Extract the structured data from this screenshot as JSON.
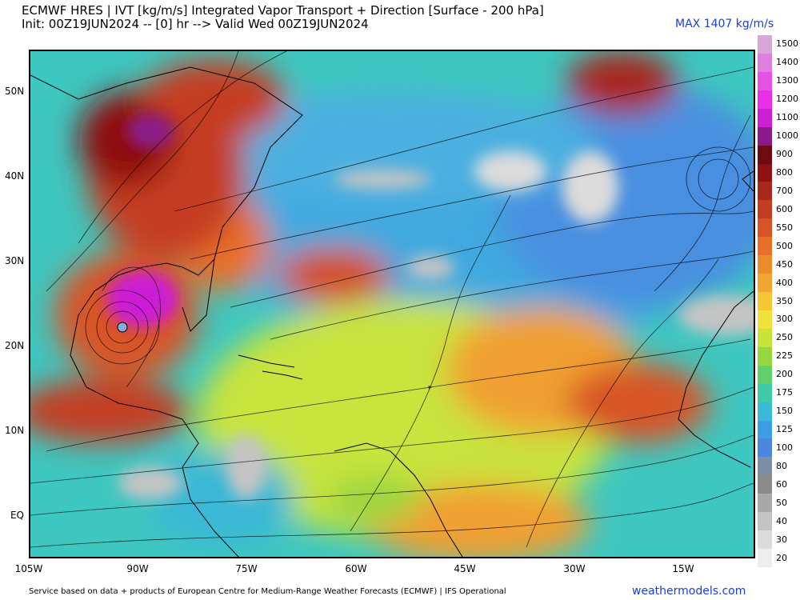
{
  "header": {
    "line1": "ECMWF HRES | IVT [kg/m/s] Integrated Vapor Transport + Direction [Surface - 200 hPa]",
    "line2": "Init: 00Z19JUN2024 -- [0] hr --> Valid Wed 00Z19JUN2024",
    "max_label": "MAX 1407 kg/m/s"
  },
  "axes": {
    "lat_labels": [
      "50N",
      "40N",
      "30N",
      "20N",
      "10N",
      "EQ"
    ],
    "lon_labels": [
      "105W",
      "90W",
      "75W",
      "60W",
      "45W",
      "30W",
      "15W"
    ]
  },
  "colorbar": {
    "levels": [
      "1500",
      "1400",
      "1300",
      "1200",
      "1100",
      "1000",
      "900",
      "800",
      "700",
      "600",
      "550",
      "500",
      "450",
      "400",
      "350",
      "300",
      "250",
      "225",
      "200",
      "175",
      "150",
      "125",
      "100",
      "80",
      "60",
      "50",
      "40",
      "30",
      "20"
    ],
    "colors": [
      "#d9a6d9",
      "#e07fe0",
      "#e652e6",
      "#ea2eea",
      "#cc1fd6",
      "#8a1a8a",
      "#6e0a12",
      "#8e1010",
      "#a8281c",
      "#c43c22",
      "#d85426",
      "#e8702a",
      "#ee8c2c",
      "#f2a530",
      "#f5c833",
      "#f0e23a",
      "#c9e23c",
      "#96d63e",
      "#5fd06a",
      "#40c9a6",
      "#3bb8d6",
      "#3c9ee6",
      "#4a86e0",
      "#7d8fa6",
      "#8c8c8c",
      "#a8a8a8",
      "#c4c4c4",
      "#dcdcdc",
      "#eeeeee"
    ]
  },
  "footer": {
    "credit": "Service based on data + products of European Centre for Medium-Range Weather Forecasts (ECMWF) | IFS Operational",
    "brand": "weathermodels.com"
  }
}
